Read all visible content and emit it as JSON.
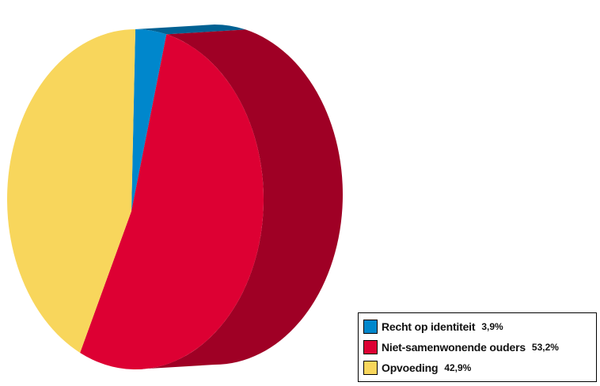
{
  "chart_data": {
    "type": "pie",
    "style": "3d",
    "title": "",
    "legend_position": "bottom-right",
    "series": [
      {
        "name": "Recht op identiteit",
        "value": 3.9,
        "value_label": "3,9%",
        "color": "#0087cc"
      },
      {
        "name": "Niet-samenwonende ouders",
        "value": 53.2,
        "value_label": "53,2%",
        "color": "#dd0033"
      },
      {
        "name": "Opvoeding",
        "value": 42.9,
        "value_label": "42,9%",
        "color": "#f8d65c"
      }
    ]
  }
}
